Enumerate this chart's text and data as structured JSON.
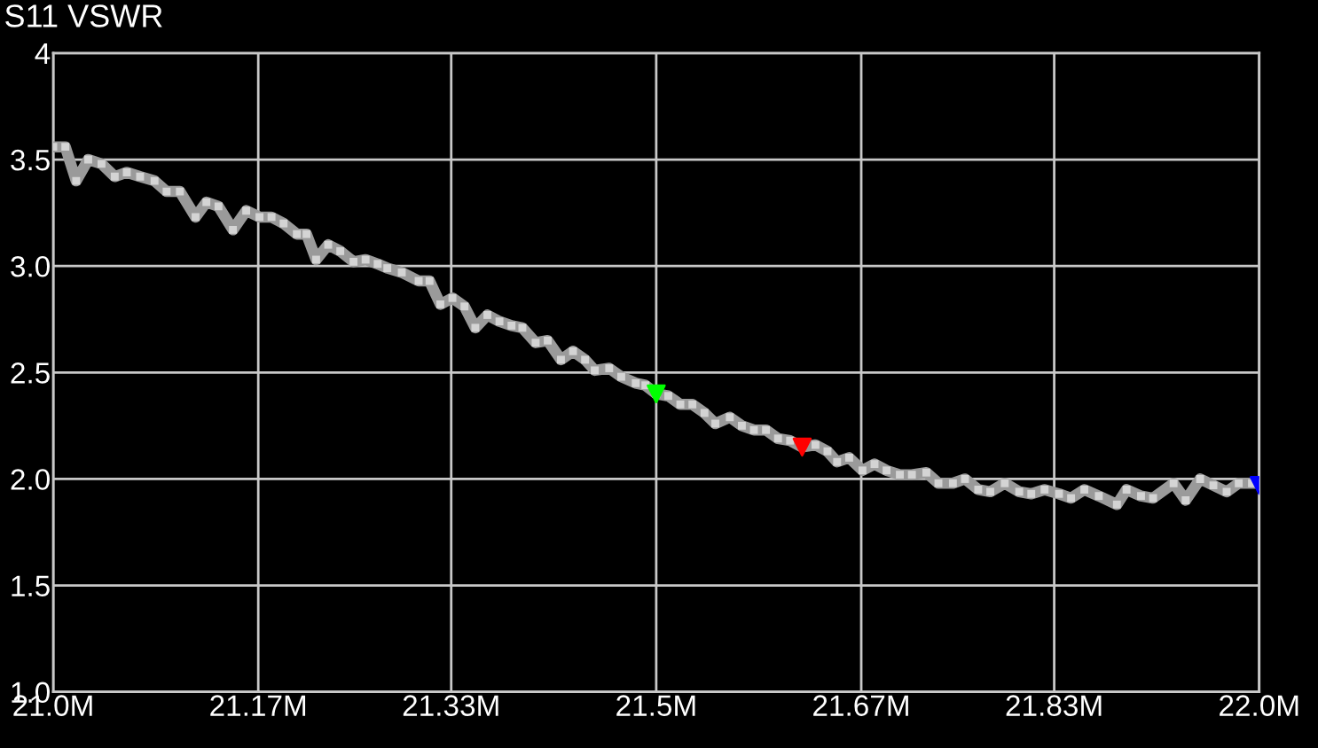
{
  "chart_data": {
    "type": "line",
    "title": "S11 VSWR",
    "xlim": [
      21.0,
      22.0
    ],
    "xticks": [
      {
        "value": 21.0,
        "label": "21.0M"
      },
      {
        "value": 21.17,
        "label": "21.17M"
      },
      {
        "value": 21.33,
        "label": "21.33M"
      },
      {
        "value": 21.5,
        "label": "21.5M"
      },
      {
        "value": 21.67,
        "label": "21.67M"
      },
      {
        "value": 21.83,
        "label": "21.83M"
      },
      {
        "value": 22.0,
        "label": "22.0M"
      }
    ],
    "ylim": [
      1.0,
      4.0
    ],
    "yticks": [
      {
        "value": 1,
        "label": "1.0"
      },
      {
        "value": 1.5,
        "label": "1.5"
      },
      {
        "value": 2,
        "label": "2.0"
      },
      {
        "value": 2.5,
        "label": "2.5"
      },
      {
        "value": 3,
        "label": "3.0"
      },
      {
        "value": 3.5,
        "label": "3.5"
      },
      4
    ],
    "grid": true,
    "line_style": "solid",
    "marker": "square",
    "series": [
      {
        "color": "#9a9a9a",
        "x": [
          21.0,
          21.01,
          21.019,
          21.029,
          21.04,
          21.051,
          21.061,
          21.072,
          21.084,
          21.094,
          21.105,
          21.118,
          21.127,
          21.137,
          21.149,
          21.16,
          21.171,
          21.181,
          21.191,
          21.202,
          21.21,
          21.218,
          21.228,
          21.238,
          21.249,
          21.259,
          21.269,
          21.277,
          21.289,
          21.303,
          21.312,
          21.321,
          21.331,
          21.341,
          21.35,
          21.36,
          21.37,
          21.38,
          21.389,
          21.4,
          21.41,
          21.421,
          21.431,
          21.441,
          21.449,
          21.461,
          21.471,
          21.483,
          21.491,
          21.5,
          21.51,
          21.52,
          21.53,
          21.54,
          21.549,
          21.561,
          21.571,
          21.581,
          21.591,
          21.601,
          21.611,
          21.621,
          21.632,
          21.642,
          21.65,
          21.66,
          21.671,
          21.681,
          21.691,
          21.702,
          21.712,
          21.724,
          21.734,
          21.746,
          21.756,
          21.767,
          21.777,
          21.789,
          21.801,
          21.811,
          21.822,
          21.834,
          21.844,
          21.855,
          21.867,
          21.882,
          21.89,
          21.902,
          21.912,
          21.929,
          21.939,
          21.951,
          21.962,
          21.973,
          21.983,
          21.994,
          22.0
        ],
        "values": [
          3.56,
          3.56,
          3.4,
          3.5,
          3.48,
          3.42,
          3.44,
          3.42,
          3.4,
          3.35,
          3.35,
          3.23,
          3.3,
          3.28,
          3.17,
          3.26,
          3.23,
          3.23,
          3.2,
          3.15,
          3.15,
          3.03,
          3.1,
          3.07,
          3.02,
          3.03,
          3.01,
          2.99,
          2.97,
          2.93,
          2.93,
          2.82,
          2.85,
          2.81,
          2.71,
          2.77,
          2.74,
          2.72,
          2.71,
          2.64,
          2.65,
          2.56,
          2.6,
          2.56,
          2.51,
          2.52,
          2.48,
          2.45,
          2.44,
          2.4,
          2.39,
          2.35,
          2.35,
          2.31,
          2.26,
          2.29,
          2.25,
          2.23,
          2.23,
          2.19,
          2.18,
          2.15,
          2.16,
          2.13,
          2.08,
          2.1,
          2.04,
          2.07,
          2.04,
          2.02,
          2.02,
          2.03,
          1.98,
          1.98,
          2.0,
          1.95,
          1.94,
          1.98,
          1.94,
          1.93,
          1.95,
          1.93,
          1.91,
          1.95,
          1.92,
          1.88,
          1.95,
          1.92,
          1.91,
          1.98,
          1.9,
          2.0,
          1.97,
          1.94,
          1.98,
          1.98,
          1.98
        ]
      },
      {
        "type": "scatter",
        "marker": "triangle",
        "x": [
          21.5,
          21.621,
          22.0
        ],
        "values": [
          2.4,
          2.15,
          1.97
        ],
        "colors": [
          "#00ff00",
          "#ff0000",
          "#0000ff"
        ]
      }
    ]
  }
}
